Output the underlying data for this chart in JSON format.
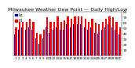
{
  "title": "Milwaukee Weather Dew Point — Daily High/Low",
  "title_fontsize": 4.5,
  "background_color": "#ffffff",
  "bar_width": 0.38,
  "high_color": "#ff0000",
  "low_color": "#0000cc",
  "ylim": [
    0,
    80
  ],
  "yticks": [
    10,
    20,
    30,
    40,
    50,
    60,
    70,
    80
  ],
  "ytick_fontsize": 3.2,
  "xtick_fontsize": 3.0,
  "legend_fontsize": 3.5,
  "highs": [
    52,
    62,
    62,
    62,
    68,
    62,
    42,
    38,
    48,
    70,
    62,
    62,
    72,
    62,
    64,
    72,
    68,
    72,
    72,
    72,
    68,
    62,
    68,
    60,
    58,
    62,
    68,
    72,
    70,
    62,
    52
  ],
  "lows": [
    38,
    48,
    52,
    48,
    52,
    48,
    32,
    22,
    32,
    52,
    42,
    48,
    52,
    48,
    48,
    58,
    52,
    58,
    58,
    58,
    52,
    48,
    52,
    42,
    40,
    48,
    52,
    58,
    52,
    48,
    38
  ],
  "xlabels": [
    "1",
    "2",
    "3",
    "4",
    "5",
    "6",
    "7",
    "8",
    "9",
    "10",
    "11",
    "12",
    "13",
    "14",
    "15",
    "16",
    "17",
    "18",
    "19",
    "20",
    "21",
    "22",
    "23",
    "24",
    "25",
    "26",
    "27",
    "28",
    "29",
    "30",
    "31"
  ],
  "dotted_lines": [
    16.5,
    17.5
  ],
  "dot_color": "#aaaaaa"
}
